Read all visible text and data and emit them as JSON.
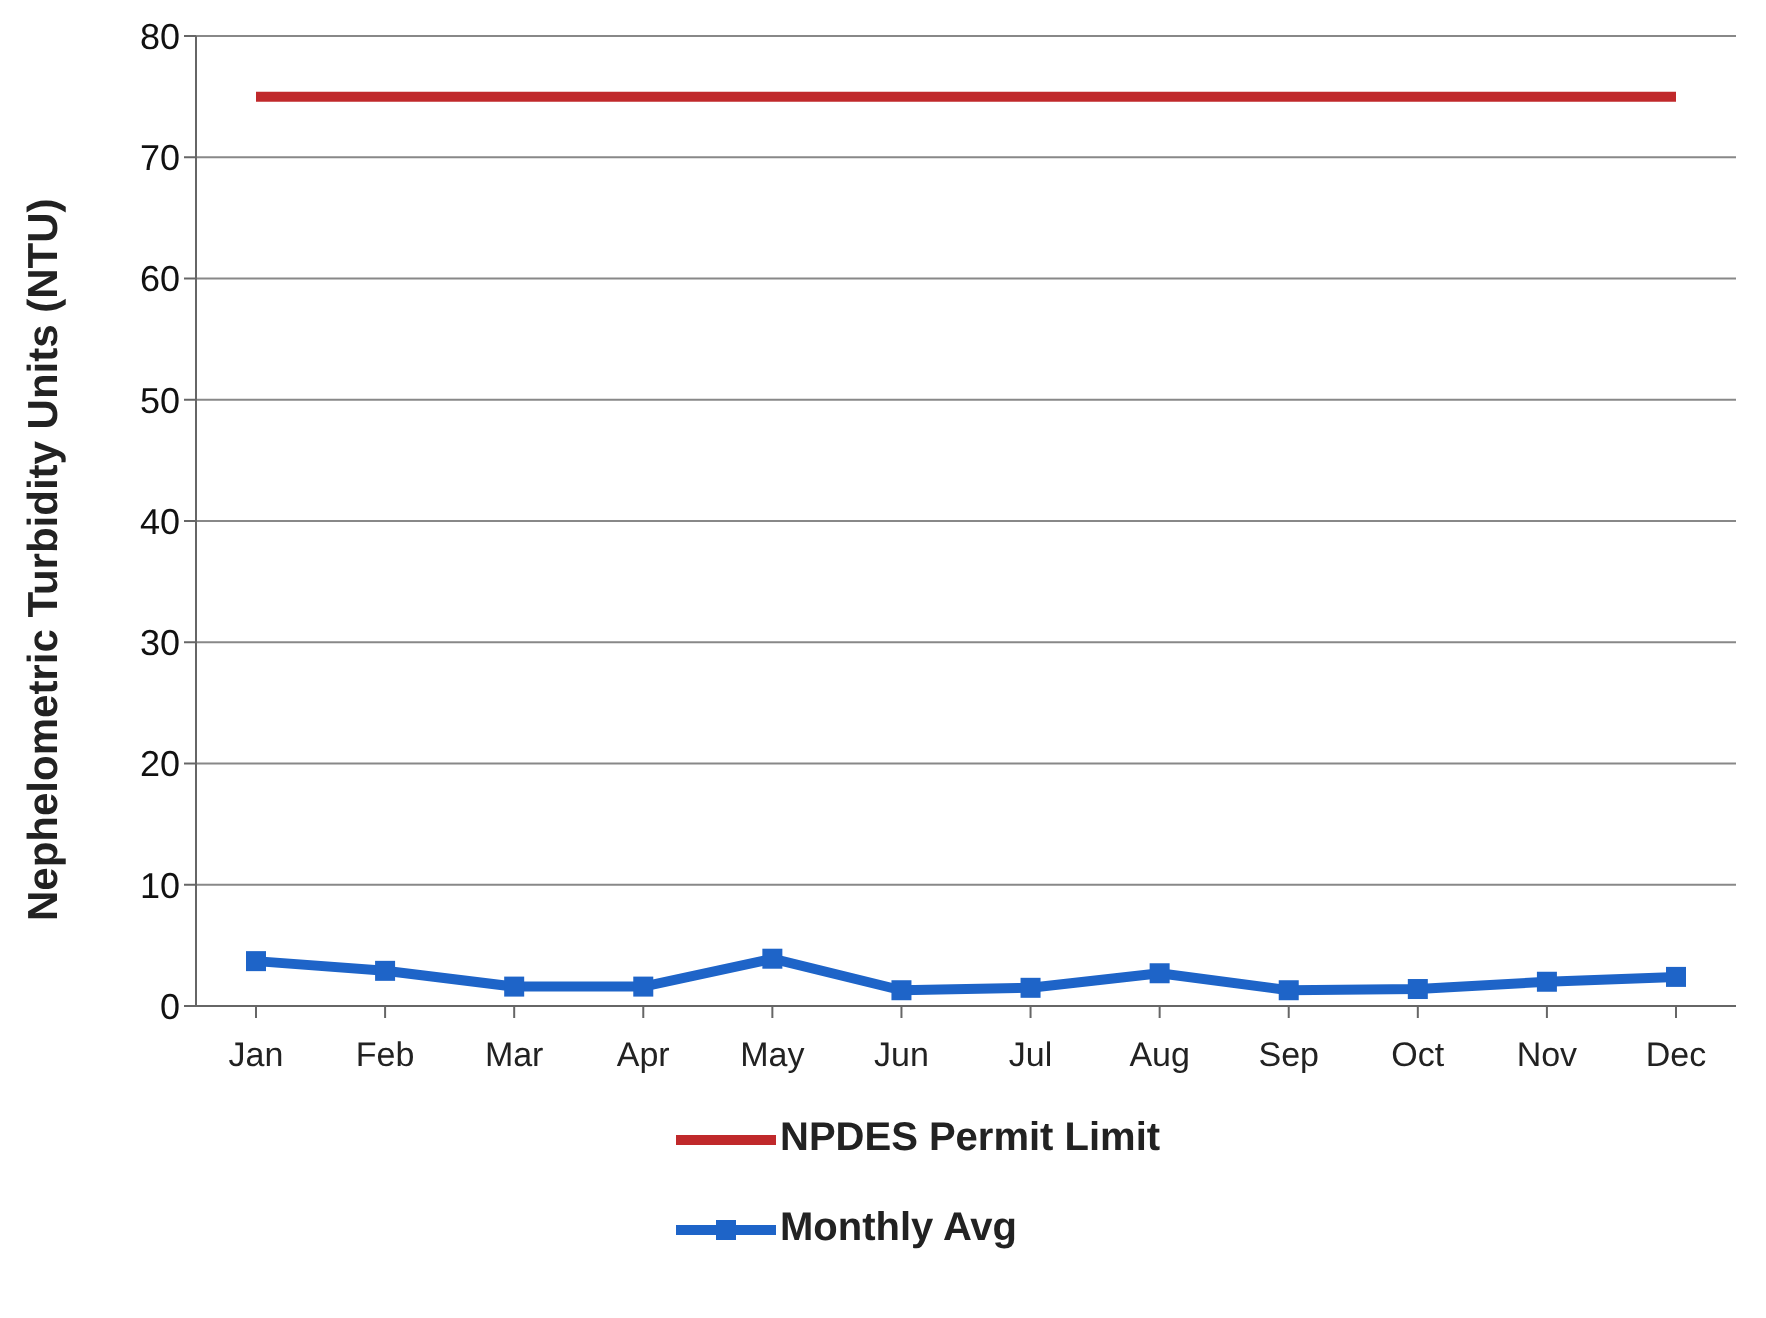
{
  "chart_data": {
    "type": "line",
    "ylabel": "Nephelometric Turbidity Units (NTU)",
    "categories": [
      "Jan",
      "Feb",
      "Mar",
      "Apr",
      "May",
      "Jun",
      "Jul",
      "Aug",
      "Sep",
      "Oct",
      "Nov",
      "Dec"
    ],
    "series": [
      {
        "name": "NPDES Permit Limit",
        "color": "#c0292b",
        "marker": "none",
        "values": [
          75,
          75,
          75,
          75,
          75,
          75,
          75,
          75,
          75,
          75,
          75,
          75
        ]
      },
      {
        "name": "Monthly Avg",
        "color": "#1e64c8",
        "marker": "square",
        "values": [
          3.7,
          2.9,
          1.6,
          1.6,
          3.9,
          1.3,
          1.5,
          2.7,
          1.3,
          1.4,
          2.0,
          2.4
        ]
      }
    ],
    "ylim": [
      0,
      80
    ],
    "yticks": [
      0,
      10,
      20,
      30,
      40,
      50,
      60,
      70,
      80
    ],
    "grid": "y",
    "legend": "bottom"
  }
}
